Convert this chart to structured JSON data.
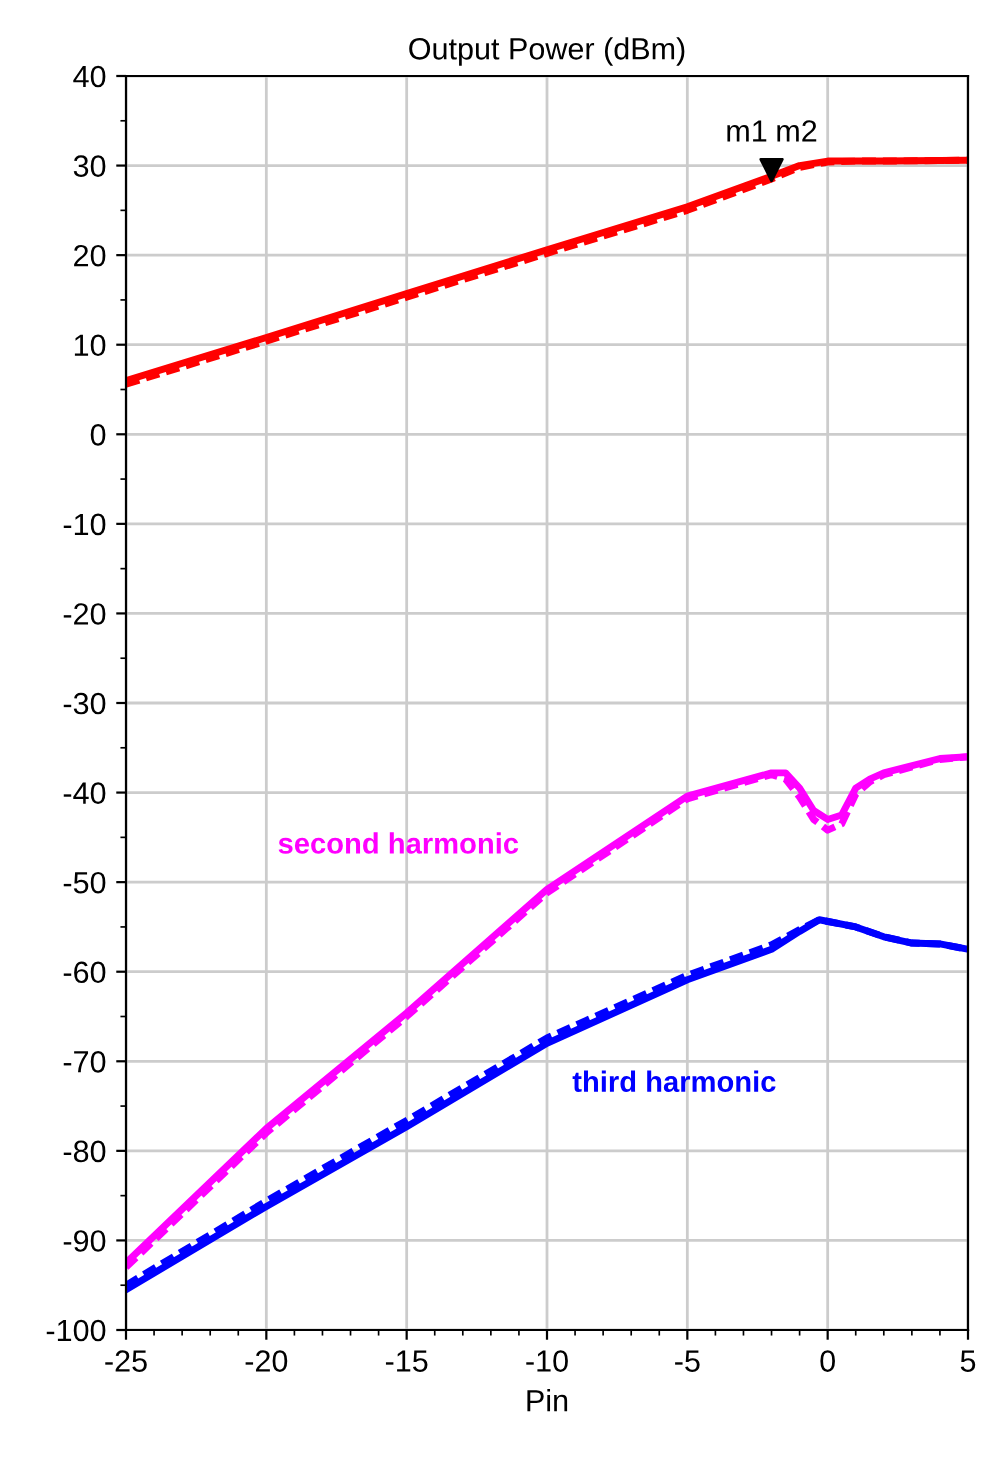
{
  "chart_data": {
    "type": "line",
    "title": "Output Power (dBm)",
    "xlabel": "Pin",
    "xlim": [
      -25,
      5
    ],
    "ylim": [
      -100,
      40
    ],
    "xticks": [
      -25,
      -20,
      -15,
      -10,
      -5,
      0,
      5
    ],
    "yticks": [
      -100,
      -90,
      -80,
      -70,
      -60,
      -50,
      -40,
      -30,
      -20,
      -10,
      0,
      10,
      20,
      30,
      40
    ],
    "grid": true,
    "legend": false,
    "series": [
      {
        "color": "#ff0000",
        "line_style": "solid",
        "x": [
          -25,
          -20,
          -15,
          -10,
          -5,
          -2,
          -1,
          0,
          1,
          2,
          5
        ],
        "values": [
          6,
          10.8,
          15.7,
          20.6,
          25.4,
          28.8,
          30,
          30.5,
          30.5,
          30.5,
          30.6
        ]
      },
      {
        "color": "#ff0000",
        "line_style": "dashed",
        "x": [
          -25,
          -20,
          -15,
          -10,
          -5,
          -2,
          -1,
          0,
          1,
          2,
          5
        ],
        "values": [
          5.6,
          10.4,
          15.3,
          20.2,
          25,
          28.5,
          29.8,
          30.4,
          30.5,
          30.5,
          30.6
        ]
      },
      {
        "name": "second harmonic",
        "color": "#ff00ff",
        "line_style": "solid",
        "x": [
          -25,
          -20,
          -15,
          -10,
          -5,
          -2,
          -1.5,
          -1,
          -0.5,
          0,
          0.5,
          1,
          1.5,
          2,
          4,
          5
        ],
        "values": [
          -92.5,
          -77.5,
          -64.6,
          -50.8,
          -40.4,
          -37.8,
          -37.8,
          -39.5,
          -42,
          -43,
          -42.5,
          -39.5,
          -38.5,
          -37.8,
          -36.2,
          -36
        ]
      },
      {
        "color": "#ff00ff",
        "line_style": "dashed",
        "x": [
          -25,
          -20,
          -15,
          -10,
          -5,
          -2,
          -1.5,
          -1,
          -0.5,
          0,
          0.5,
          1,
          1.5,
          2,
          4,
          5
        ],
        "values": [
          -93,
          -78,
          -65,
          -51.2,
          -40.7,
          -38,
          -38.5,
          -40.5,
          -43,
          -44.2,
          -43.5,
          -40.2,
          -38.8,
          -38,
          -36.3,
          -36
        ]
      },
      {
        "name": "third harmonic",
        "color": "#0000ff",
        "line_style": "solid",
        "x": [
          -25,
          -20,
          -15,
          -10,
          -5,
          -2,
          -1,
          -0.3,
          1,
          2,
          3,
          4,
          5
        ],
        "values": [
          -95.5,
          -86.2,
          -77.3,
          -68,
          -60.9,
          -57.5,
          -55.5,
          -54.2,
          -55,
          -56.1,
          -56.8,
          -56.9,
          -57.5
        ]
      },
      {
        "color": "#0000ff",
        "line_style": "dashed",
        "x": [
          -25,
          -20,
          -15,
          -10,
          -5,
          -2,
          -1,
          -0.3,
          1,
          2,
          3,
          4,
          5
        ],
        "values": [
          -95,
          -85.6,
          -76.6,
          -67.4,
          -60.4,
          -57,
          -55.3,
          -54.2,
          -55,
          -56.1,
          -56.8,
          -56.9,
          -57.5
        ]
      },
      {
        "type": "scatter",
        "marker": "triangle",
        "color": "#000000",
        "x": [
          -2
        ],
        "values": [
          29.5
        ]
      }
    ],
    "annotations": [
      {
        "text": "m1",
        "x": -2,
        "y": 29.5
      },
      {
        "text": "m2",
        "x": -2,
        "y": 29.5
      }
    ]
  }
}
